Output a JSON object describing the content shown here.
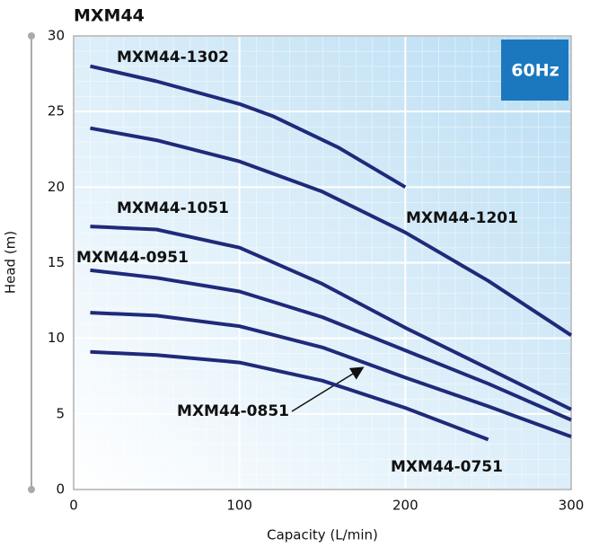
{
  "chart_data": {
    "type": "line",
    "title": "MXM44",
    "badge": "60Hz",
    "xlabel": "Capacity (L/min)",
    "ylabel": "Head (m)",
    "xlim": [
      0,
      300
    ],
    "xticks": [
      0,
      100,
      200,
      300
    ],
    "ylim": [
      0,
      30
    ],
    "yticks": [
      0,
      5,
      10,
      15,
      20,
      25,
      30
    ],
    "grid": true,
    "series": [
      {
        "name": "MXM44-1302",
        "color": "#1f2a7a",
        "x": [
          10,
          50,
          100,
          120,
          160,
          200
        ],
        "values": [
          28,
          27,
          25.5,
          24.7,
          22.6,
          20
        ]
      },
      {
        "name": "MXM44-1201",
        "color": "#1f2a7a",
        "x": [
          10,
          50,
          100,
          150,
          200,
          250,
          300
        ],
        "values": [
          23.9,
          23.1,
          21.7,
          19.7,
          17,
          13.8,
          10.2
        ]
      },
      {
        "name": "MXM44-1051",
        "color": "#1f2a7a",
        "x": [
          10,
          50,
          100,
          150,
          200,
          250,
          300
        ],
        "values": [
          17.4,
          17.2,
          16,
          13.6,
          10.7,
          8,
          5.3
        ]
      },
      {
        "name": "MXM44-0951",
        "color": "#1f2a7a",
        "x": [
          10,
          50,
          100,
          150,
          200,
          250,
          300
        ],
        "values": [
          14.5,
          14,
          13.1,
          11.4,
          9.2,
          7,
          4.6
        ]
      },
      {
        "name": "MXM44-0851",
        "color": "#1f2a7a",
        "x": [
          10,
          50,
          100,
          150,
          200,
          250,
          300
        ],
        "values": [
          11.7,
          11.5,
          10.8,
          9.4,
          7.4,
          5.5,
          3.5
        ]
      },
      {
        "name": "MXM44-0751",
        "color": "#1f2a7a",
        "x": [
          10,
          50,
          100,
          150,
          200,
          250
        ],
        "values": [
          9.1,
          8.9,
          8.4,
          7.2,
          5.4,
          3.3
        ]
      }
    ]
  }
}
